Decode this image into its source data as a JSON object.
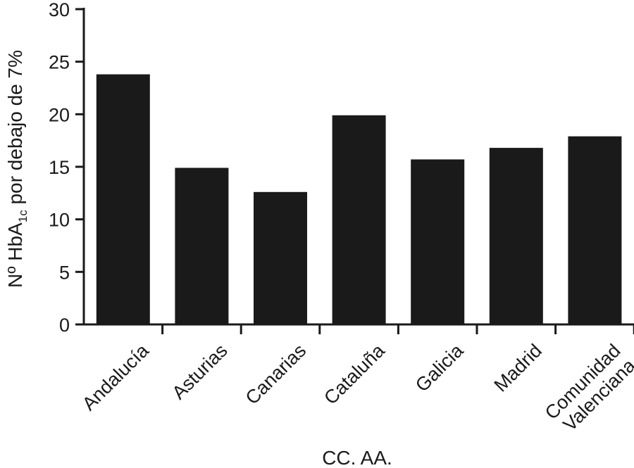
{
  "chart_data": {
    "type": "bar",
    "title": "",
    "xlabel": "CC. AA.",
    "ylabel": {
      "main": "Nº HbA",
      "subscript": "1c",
      "rest": " por debajo de 7%"
    },
    "ylim": [
      0,
      30
    ],
    "yticks": [
      0,
      5,
      10,
      15,
      20,
      25,
      30
    ],
    "categories": [
      [
        "Andalucía"
      ],
      [
        "Asturias"
      ],
      [
        "Canarias"
      ],
      [
        "Cataluña"
      ],
      [
        "Galicia"
      ],
      [
        "Madrid"
      ],
      [
        "Comunidad",
        "Valenciana"
      ]
    ],
    "values": [
      23.8,
      14.9,
      12.6,
      19.9,
      15.7,
      16.8,
      17.9
    ],
    "bar_color": "#1a1a1a",
    "grid": false,
    "legend": "none"
  }
}
